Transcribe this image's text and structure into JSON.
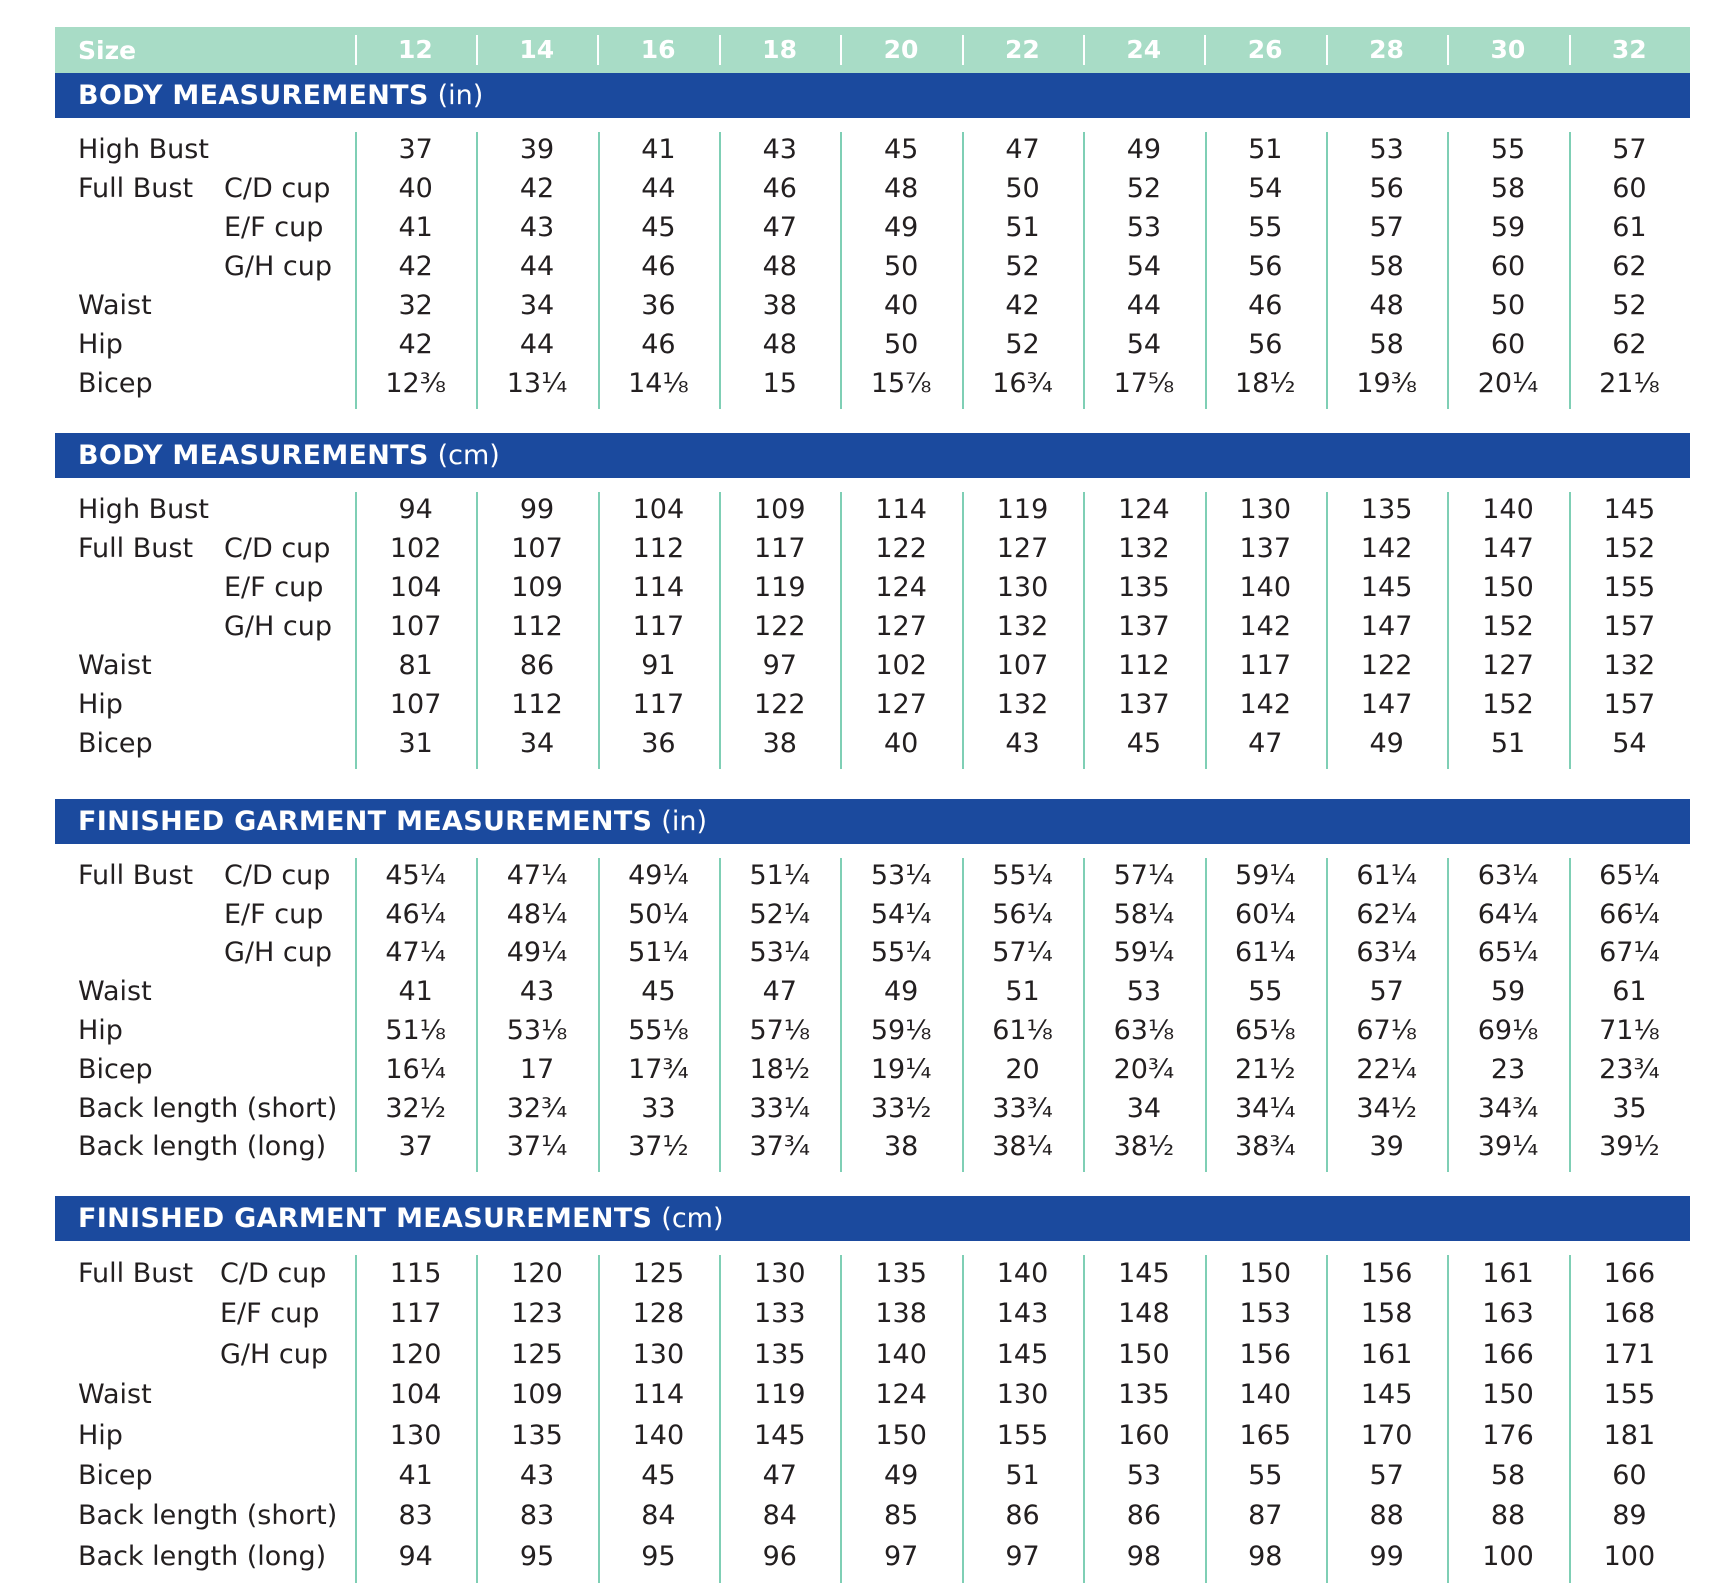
{
  "size_label": "Size",
  "sizes": [
    "12",
    "14",
    "16",
    "18",
    "20",
    "22",
    "24",
    "26",
    "28",
    "30",
    "32"
  ],
  "sections": [
    {
      "title": "BODY MEASUREMENTS",
      "unit": "(in)",
      "rows": [
        {
          "label": "High Bust",
          "sub": "",
          "values": [
            "37",
            "39",
            "41",
            "43",
            "45",
            "47",
            "49",
            "51",
            "53",
            "55",
            "57"
          ]
        },
        {
          "label": "Full Bust",
          "sub": "C/D cup",
          "values": [
            "40",
            "42",
            "44",
            "46",
            "48",
            "50",
            "52",
            "54",
            "56",
            "58",
            "60"
          ]
        },
        {
          "label": "",
          "sub": "E/F cup",
          "values": [
            "41",
            "43",
            "45",
            "47",
            "49",
            "51",
            "53",
            "55",
            "57",
            "59",
            "61"
          ]
        },
        {
          "label": "",
          "sub": "G/H cup",
          "values": [
            "42",
            "44",
            "46",
            "48",
            "50",
            "52",
            "54",
            "56",
            "58",
            "60",
            "62"
          ]
        },
        {
          "label": "Waist",
          "sub": "",
          "values": [
            "32",
            "34",
            "36",
            "38",
            "40",
            "42",
            "44",
            "46",
            "48",
            "50",
            "52"
          ]
        },
        {
          "label": "Hip",
          "sub": "",
          "values": [
            "42",
            "44",
            "46",
            "48",
            "50",
            "52",
            "54",
            "56",
            "58",
            "60",
            "62"
          ]
        },
        {
          "label": "Bicep",
          "sub": "",
          "values": [
            "12⅜",
            "13¼",
            "14⅛",
            "15",
            "15⅞",
            "16¾",
            "17⅝",
            "18½",
            "19⅜",
            "20¼",
            "21⅛"
          ]
        }
      ]
    },
    {
      "title": "BODY MEASUREMENTS",
      "unit": "(cm)",
      "rows": [
        {
          "label": "High Bust",
          "sub": "",
          "values": [
            "94",
            "99",
            "104",
            "109",
            "114",
            "119",
            "124",
            "130",
            "135",
            "140",
            "145"
          ]
        },
        {
          "label": "Full Bust",
          "sub": "C/D cup",
          "values": [
            "102",
            "107",
            "112",
            "117",
            "122",
            "127",
            "132",
            "137",
            "142",
            "147",
            "152"
          ]
        },
        {
          "label": "",
          "sub": "E/F cup",
          "values": [
            "104",
            "109",
            "114",
            "119",
            "124",
            "130",
            "135",
            "140",
            "145",
            "150",
            "155"
          ]
        },
        {
          "label": "",
          "sub": "G/H cup",
          "values": [
            "107",
            "112",
            "117",
            "122",
            "127",
            "132",
            "137",
            "142",
            "147",
            "152",
            "157"
          ]
        },
        {
          "label": "Waist",
          "sub": "",
          "values": [
            "81",
            "86",
            "91",
            "97",
            "102",
            "107",
            "112",
            "117",
            "122",
            "127",
            "132"
          ]
        },
        {
          "label": "Hip",
          "sub": "",
          "values": [
            "107",
            "112",
            "117",
            "122",
            "127",
            "132",
            "137",
            "142",
            "147",
            "152",
            "157"
          ]
        },
        {
          "label": "Bicep",
          "sub": "",
          "values": [
            "31",
            "34",
            "36",
            "38",
            "40",
            "43",
            "45",
            "47",
            "49",
            "51",
            "54"
          ]
        }
      ]
    },
    {
      "title": "FINISHED GARMENT MEASUREMENTS",
      "unit": "(in)",
      "rows": [
        {
          "label": "Full Bust",
          "sub": "C/D cup",
          "values": [
            "45¼",
            "47¼",
            "49¼",
            "51¼",
            "53¼",
            "55¼",
            "57¼",
            "59¼",
            "61¼",
            "63¼",
            "65¼"
          ]
        },
        {
          "label": "",
          "sub": "E/F cup",
          "values": [
            "46¼",
            "48¼",
            "50¼",
            "52¼",
            "54¼",
            "56¼",
            "58¼",
            "60¼",
            "62¼",
            "64¼",
            "66¼"
          ]
        },
        {
          "label": "",
          "sub": "G/H cup",
          "values": [
            "47¼",
            "49¼",
            "51¼",
            "53¼",
            "55¼",
            "57¼",
            "59¼",
            "61¼",
            "63¼",
            "65¼",
            "67¼"
          ]
        },
        {
          "label": "Waist",
          "sub": "",
          "values": [
            "41",
            "43",
            "45",
            "47",
            "49",
            "51",
            "53",
            "55",
            "57",
            "59",
            "61"
          ]
        },
        {
          "label": "Hip",
          "sub": "",
          "values": [
            "51⅛",
            "53⅛",
            "55⅛",
            "57⅛",
            "59⅛",
            "61⅛",
            "63⅛",
            "65⅛",
            "67⅛",
            "69⅛",
            "71⅛"
          ]
        },
        {
          "label": "Bicep",
          "sub": "",
          "values": [
            "16¼",
            "17",
            "17¾",
            "18½",
            "19¼",
            "20",
            "20¾",
            "21½",
            "22¼",
            "23",
            "23¾"
          ]
        },
        {
          "label": "Back length (short)",
          "sub": "",
          "values": [
            "32½",
            "32¾",
            "33",
            "33¼",
            "33½",
            "33¾",
            "34",
            "34¼",
            "34½",
            "34¾",
            "35"
          ]
        },
        {
          "label": "Back length (long)",
          "sub": "",
          "values": [
            "37",
            "37¼",
            "37½",
            "37¾",
            "38",
            "38¼",
            "38½",
            "38¾",
            "39",
            "39¼",
            "39½"
          ]
        }
      ]
    },
    {
      "title": "FINISHED GARMENT MEASUREMENTS",
      "unit": "(cm)",
      "rows": [
        {
          "label": "Full Bust",
          "sub": "C/D cup",
          "values": [
            "115",
            "120",
            "125",
            "130",
            "135",
            "140",
            "145",
            "150",
            "156",
            "161",
            "166"
          ]
        },
        {
          "label": "",
          "sub": "E/F cup",
          "values": [
            "117",
            "123",
            "128",
            "133",
            "138",
            "143",
            "148",
            "153",
            "158",
            "163",
            "168"
          ]
        },
        {
          "label": "",
          "sub": "G/H cup",
          "values": [
            "120",
            "125",
            "130",
            "135",
            "140",
            "145",
            "150",
            "156",
            "161",
            "166",
            "171"
          ]
        },
        {
          "label": "Waist",
          "sub": "",
          "values": [
            "104",
            "109",
            "114",
            "119",
            "124",
            "130",
            "135",
            "140",
            "145",
            "150",
            "155"
          ]
        },
        {
          "label": "Hip",
          "sub": "",
          "values": [
            "130",
            "135",
            "140",
            "145",
            "150",
            "155",
            "160",
            "165",
            "170",
            "176",
            "181"
          ]
        },
        {
          "label": "Bicep",
          "sub": "",
          "values": [
            "41",
            "43",
            "45",
            "47",
            "49",
            "51",
            "53",
            "55",
            "57",
            "58",
            "60"
          ]
        },
        {
          "label": "Back length (short)",
          "sub": "",
          "values": [
            "83",
            "83",
            "84",
            "84",
            "85",
            "86",
            "86",
            "87",
            "88",
            "88",
            "89"
          ]
        },
        {
          "label": "Back length (long)",
          "sub": "",
          "values": [
            "94",
            "95",
            "95",
            "96",
            "97",
            "97",
            "98",
            "98",
            "99",
            "100",
            "100"
          ]
        }
      ]
    }
  ],
  "colors": {
    "size_bar": "#a8dcc6",
    "section_bar": "#1b4a9e",
    "divider": "#7fcfb5",
    "text": "#231f20"
  }
}
